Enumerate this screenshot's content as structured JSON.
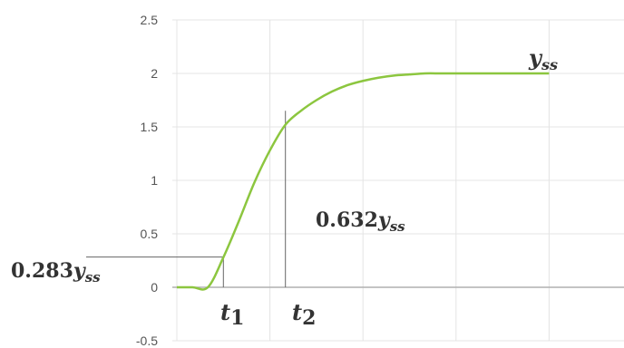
{
  "chart_data": {
    "type": "line",
    "title": "",
    "xlabel": "",
    "ylabel": "",
    "ylim": [
      -0.5,
      2.5
    ],
    "yticks": [
      -0.5,
      0,
      0.5,
      1,
      1.5,
      2,
      2.5
    ],
    "ytick_labels": [
      "-0.5",
      "0",
      "0.5",
      "1",
      "1.5",
      "2",
      "2.5"
    ],
    "grid": true,
    "legend": "none",
    "line_color": "#8cc63f",
    "series": [
      {
        "x": [
          0,
          0.5,
          1,
          1.5,
          2,
          2.5,
          3,
          3.5,
          4,
          4.5,
          5,
          5.5,
          6,
          6.5,
          7,
          7.5,
          8,
          8.5,
          9,
          9.5,
          10,
          10.5,
          11,
          11.5,
          12
        ],
        "values": [
          0,
          0,
          0,
          0.28,
          0.62,
          0.98,
          1.28,
          1.52,
          1.65,
          1.75,
          1.83,
          1.89,
          1.93,
          1.96,
          1.98,
          1.99,
          2.0,
          2.0,
          2.0,
          2.0,
          2.0,
          2.0,
          2.0,
          2.0,
          2.0
        ]
      }
    ],
    "annotations": {
      "steady_state": {
        "main": "y",
        "sub": "ss"
      },
      "level_283": {
        "coef": "0.283",
        "main": "y",
        "sub": "ss",
        "value": 0.283
      },
      "level_632": {
        "coef": "0.632",
        "main": "y",
        "sub": "ss",
        "value": 1.65
      },
      "t1": {
        "main": "t",
        "sub": "1",
        "x": 1.5
      },
      "t2": {
        "main": "t",
        "sub": "2",
        "x": 3.5
      }
    }
  }
}
